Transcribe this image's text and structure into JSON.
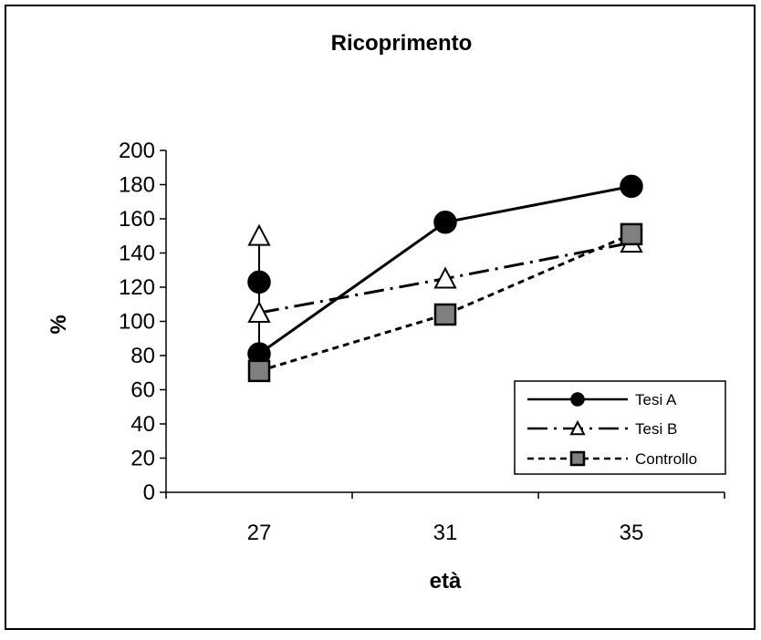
{
  "chart_data": {
    "type": "line",
    "title": "Ricoprimento",
    "xlabel": "età",
    "ylabel": "%",
    "categories": [
      "27",
      "31",
      "35"
    ],
    "ylim": [
      0,
      200
    ],
    "yticks": [
      "0",
      "20",
      "40",
      "60",
      "80",
      "100",
      "120",
      "140",
      "160",
      "180",
      "200"
    ],
    "grid": false,
    "legend_position": "bottom-right",
    "series": [
      {
        "name": "Tesi A",
        "marker": "filled-circle",
        "line_style": "solid",
        "points": [
          {
            "x": "27",
            "y": 81
          },
          {
            "x": "31",
            "y": 158
          },
          {
            "x": "35",
            "y": 179
          }
        ],
        "extra_points": [
          {
            "x": "27",
            "y": 123
          }
        ]
      },
      {
        "name": "Tesi B",
        "marker": "open-triangle",
        "line_style": "dash-dot",
        "points": [
          {
            "x": "27",
            "y": 105
          },
          {
            "x": "31",
            "y": 125
          },
          {
            "x": "35",
            "y": 146
          }
        ],
        "extra_points": [
          {
            "x": "27",
            "y": 150
          }
        ]
      },
      {
        "name": "Controllo",
        "marker": "gray-square",
        "line_style": "dotted",
        "points": [
          {
            "x": "27",
            "y": 71
          },
          {
            "x": "31",
            "y": 104
          },
          {
            "x": "35",
            "y": 151
          }
        ],
        "extra_points": []
      }
    ]
  },
  "colors": {
    "line": "#000000",
    "circle_fill": "#000000",
    "triangle_fill": "#ffffff",
    "square_fill": "#808080"
  }
}
